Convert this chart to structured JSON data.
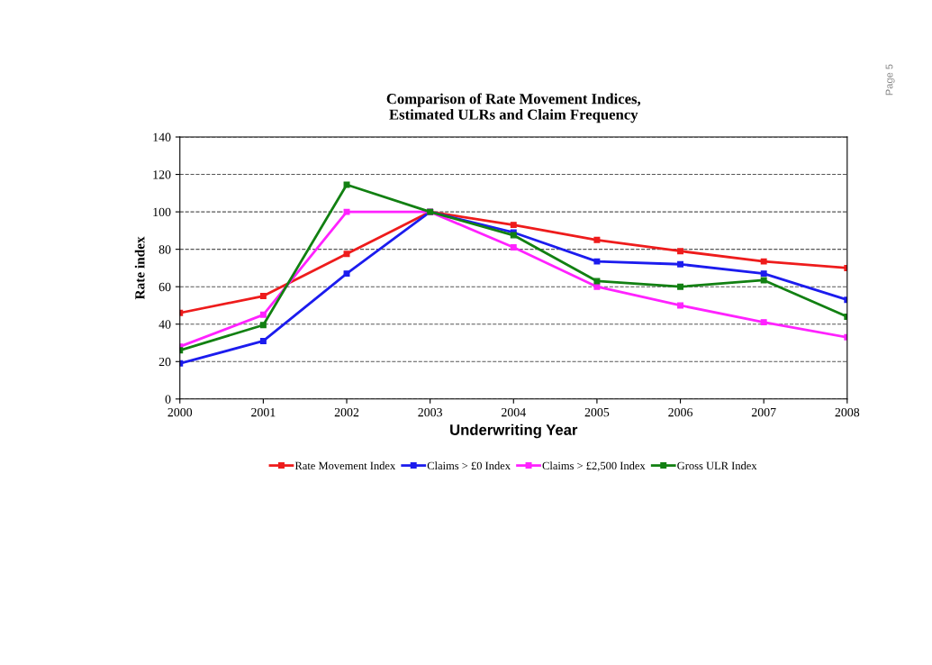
{
  "chart_data": {
    "type": "line",
    "title": "Comparison of Rate Movement Indices,\nEstimated ULRs and Claim Frequency",
    "xlabel": "Underwriting Year",
    "ylabel": "Rate index",
    "x": [
      2000,
      2001,
      2002,
      2003,
      2004,
      2005,
      2006,
      2007,
      2008
    ],
    "series": [
      {
        "name": "Rate Movement Index",
        "color": "#ee1c1c",
        "values": [
          46,
          55,
          77.5,
          100,
          93,
          85,
          79,
          73.5,
          70
        ]
      },
      {
        "name": "Claims > £0 Index",
        "color": "#1c1cee",
        "values": [
          19,
          31,
          67,
          100,
          89,
          73.5,
          72,
          67,
          53
        ]
      },
      {
        "name": "Claims > £2,500 Index",
        "color": "#ff22ff",
        "values": [
          28,
          45,
          100,
          100,
          81,
          60,
          50,
          41,
          33
        ]
      },
      {
        "name": "Gross ULR Index",
        "color": "#128012",
        "values": [
          26,
          39.5,
          114.5,
          100,
          87.5,
          63,
          60,
          63.5,
          44
        ]
      }
    ],
    "xlim": [
      2000,
      2008
    ],
    "xticks": [
      2000,
      2001,
      2002,
      2003,
      2004,
      2005,
      2006,
      2007,
      2008
    ],
    "ylim": [
      0,
      140
    ],
    "yticks": [
      0,
      20,
      40,
      60,
      80,
      100,
      120,
      140
    ],
    "grid": "y",
    "legend": "bottom",
    "marker": "square",
    "line_style": "solid",
    "annotations": [
      "Page 5"
    ]
  }
}
